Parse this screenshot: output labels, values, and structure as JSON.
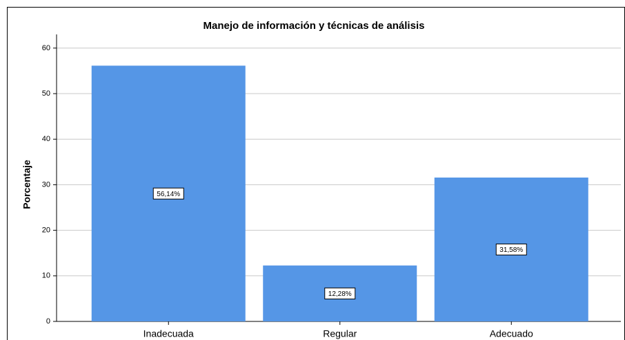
{
  "chart_data": {
    "type": "bar",
    "title": "Manejo de información y técnicas de análisis",
    "y_label": "Porcentaje",
    "categories": [
      "Inadecuada",
      "Regular",
      "Adecuado"
    ],
    "values": [
      56.14,
      12.28,
      31.58
    ],
    "value_labels": [
      "56,14%",
      "12,28%",
      "31,58%"
    ],
    "color": "#5596e6",
    "ylim": [
      0,
      63
    ],
    "yticks": [
      0,
      10,
      20,
      30,
      40,
      50,
      60
    ],
    "grid": true
  }
}
